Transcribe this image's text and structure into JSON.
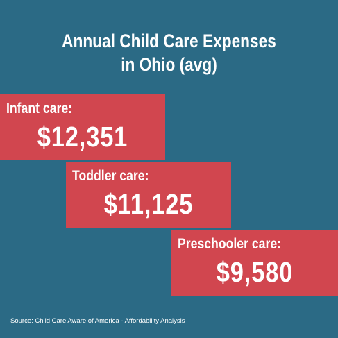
{
  "colors": {
    "background": "#2b6a85",
    "tile": "#d1464f",
    "text": "#ffffff"
  },
  "chart_data": {
    "type": "bar",
    "title_lines": [
      "Annual Child Care Expenses",
      "in Ohio (avg)"
    ],
    "categories": [
      "Infant care:",
      "Toddler care:",
      "Preschooler care:"
    ],
    "values": [
      12351,
      11125,
      9580
    ],
    "value_labels": [
      "$12,351",
      "$11,125",
      "$9,580"
    ],
    "legend": "none",
    "grid": false
  },
  "source": "Source: Child Care Aware of America - Affordability Analysis"
}
